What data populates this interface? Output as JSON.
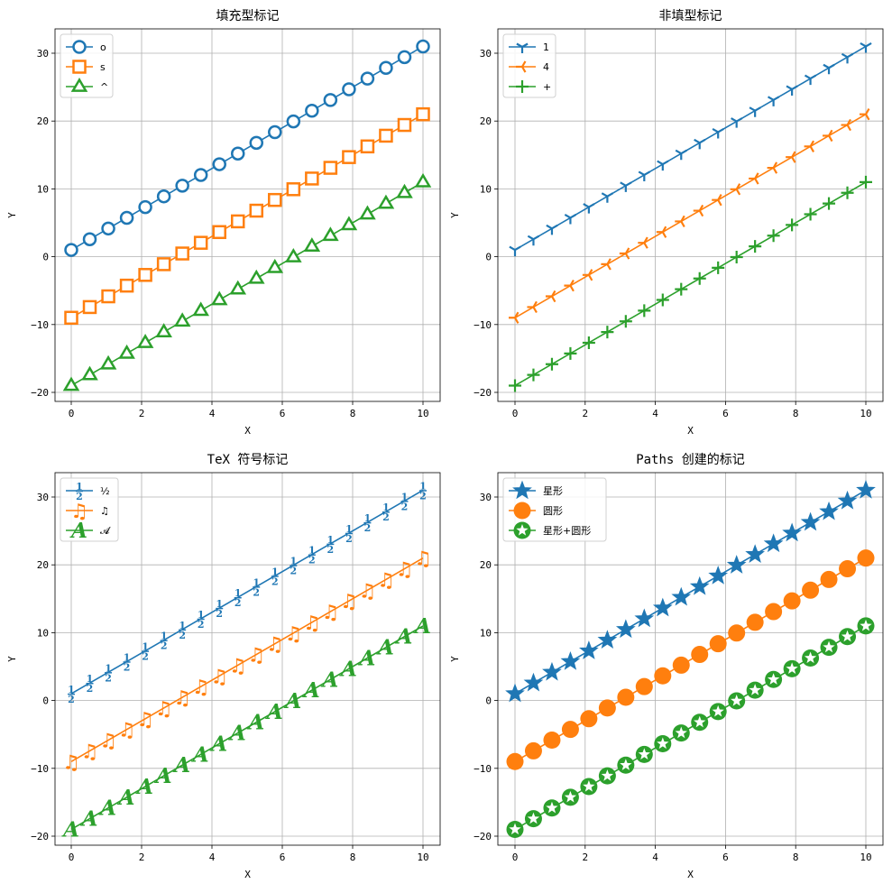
{
  "chart_data": [
    {
      "type": "line",
      "title": "填充型标记",
      "xlabel": "X",
      "ylabel": "Y",
      "xlim": [
        -0.5,
        10.5
      ],
      "ylim": [
        -21.5,
        33.5
      ],
      "xticks": [
        0,
        2,
        4,
        6,
        8,
        10
      ],
      "yticks": [
        -20,
        -10,
        0,
        10,
        20,
        30
      ],
      "grid": true,
      "legend_position": "top-left",
      "x": [
        0,
        0.526,
        1.053,
        1.579,
        2.105,
        2.632,
        3.158,
        3.684,
        4.211,
        4.737,
        5.263,
        5.789,
        6.316,
        6.842,
        7.368,
        7.895,
        8.421,
        8.947,
        9.474,
        10
      ],
      "series": [
        {
          "name": "o",
          "marker": "circle",
          "color": "#1f77b4",
          "intercept": 1,
          "slope": 3
        },
        {
          "name": "s",
          "marker": "square",
          "color": "#ff7f0e",
          "intercept": -9,
          "slope": 3
        },
        {
          "name": "^",
          "marker": "triangle",
          "color": "#2ca02c",
          "intercept": -19,
          "slope": 3
        }
      ]
    },
    {
      "type": "line",
      "title": "非填型标记",
      "xlabel": "X",
      "ylabel": "Y",
      "xlim": [
        -0.5,
        10.5
      ],
      "ylim": [
        -21.5,
        33.5
      ],
      "xticks": [
        0,
        2,
        4,
        6,
        8,
        10
      ],
      "yticks": [
        -20,
        -10,
        0,
        10,
        20,
        30
      ],
      "grid": true,
      "legend_position": "top-left",
      "x": [
        0,
        0.526,
        1.053,
        1.579,
        2.105,
        2.632,
        3.158,
        3.684,
        4.211,
        4.737,
        5.263,
        5.789,
        6.316,
        6.842,
        7.368,
        7.895,
        8.421,
        8.947,
        9.474,
        10
      ],
      "series": [
        {
          "name": "1",
          "marker": "tri-down",
          "color": "#1f77b4",
          "intercept": 1,
          "slope": 3
        },
        {
          "name": "4",
          "marker": "tri-left",
          "color": "#ff7f0e",
          "intercept": -9,
          "slope": 3
        },
        {
          "name": "+",
          "marker": "plus",
          "color": "#2ca02c",
          "intercept": -19,
          "slope": 3
        }
      ]
    },
    {
      "type": "line",
      "title": "TeX 符号标记",
      "xlabel": "X",
      "ylabel": "Y",
      "xlim": [
        -0.5,
        10.5
      ],
      "ylim": [
        -21,
        33.5
      ],
      "xticks": [
        0,
        2,
        4,
        6,
        8,
        10
      ],
      "yticks": [
        -20,
        -10,
        0,
        10,
        20,
        30
      ],
      "grid": true,
      "legend_position": "top-left",
      "x": [
        0,
        0.526,
        1.053,
        1.579,
        2.105,
        2.632,
        3.158,
        3.684,
        4.211,
        4.737,
        5.263,
        5.789,
        6.316,
        6.842,
        7.368,
        7.895,
        8.421,
        8.947,
        9.474,
        10
      ],
      "series": [
        {
          "name": "½",
          "marker": "half",
          "color": "#1f77b4",
          "intercept": 1,
          "slope": 3
        },
        {
          "name": "♫",
          "marker": "music",
          "color": "#ff7f0e",
          "intercept": -9,
          "slope": 3
        },
        {
          "name": "𝓐",
          "marker": "script-a",
          "color": "#2ca02c",
          "intercept": -19,
          "slope": 3
        }
      ]
    },
    {
      "type": "line",
      "title": "Paths 创建的标记",
      "xlabel": "X",
      "ylabel": "Y",
      "xlim": [
        -0.5,
        10.5
      ],
      "ylim": [
        -21,
        33.5
      ],
      "xticks": [
        0,
        2,
        4,
        6,
        8,
        10
      ],
      "yticks": [
        -20,
        -10,
        0,
        10,
        20,
        30
      ],
      "grid": true,
      "legend_position": "top-left",
      "x": [
        0,
        0.526,
        1.053,
        1.579,
        2.105,
        2.632,
        3.158,
        3.684,
        4.211,
        4.737,
        5.263,
        5.789,
        6.316,
        6.842,
        7.368,
        7.895,
        8.421,
        8.947,
        9.474,
        10
      ],
      "series": [
        {
          "name": "星形",
          "marker": "star",
          "color": "#1f77b4",
          "intercept": 1,
          "slope": 3
        },
        {
          "name": "圆形",
          "marker": "big-circle",
          "color": "#ff7f0e",
          "intercept": -9,
          "slope": 3
        },
        {
          "name": "星形+圆形",
          "marker": "star-circle",
          "color": "#2ca02c",
          "intercept": -19,
          "slope": 3
        }
      ]
    }
  ]
}
